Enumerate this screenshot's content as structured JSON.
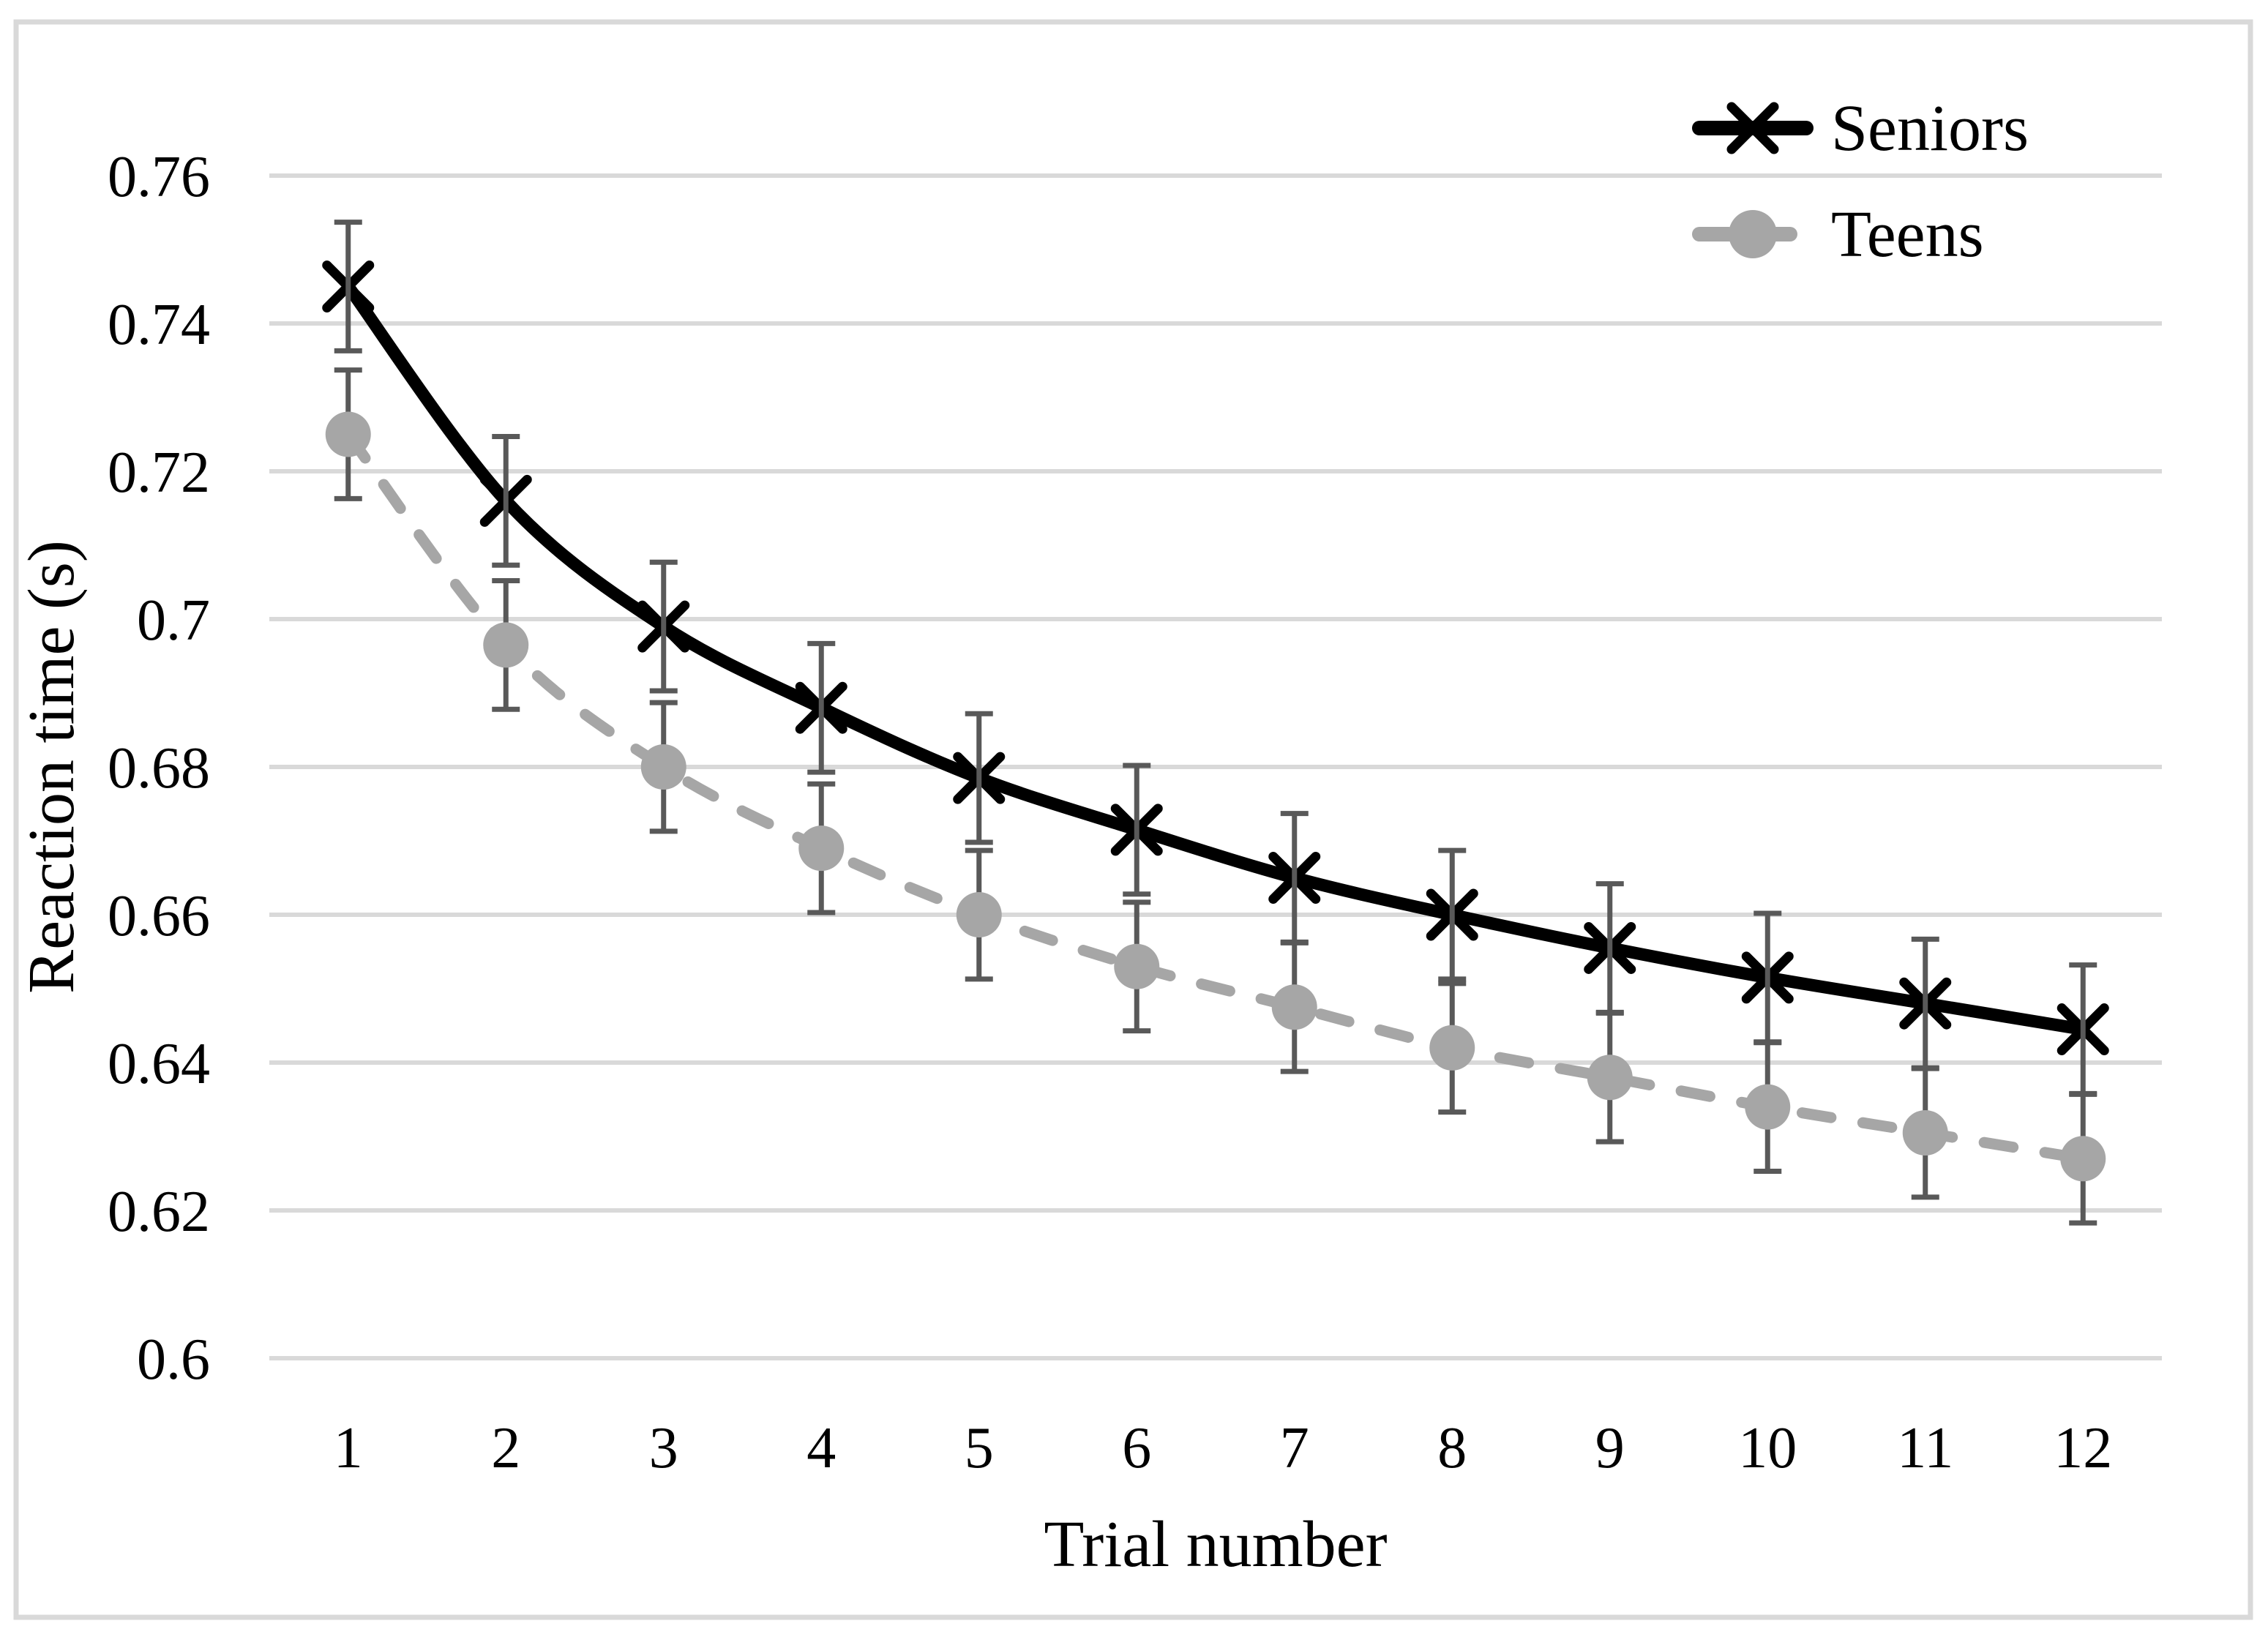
{
  "chart_data": {
    "type": "line",
    "title": "",
    "xlabel": "Trial number",
    "ylabel": "Reaction time (s)",
    "x": [
      1,
      2,
      3,
      4,
      5,
      6,
      7,
      8,
      9,
      10,
      11,
      12
    ],
    "xtick_labels": [
      "1",
      "2",
      "3",
      "4",
      "5",
      "6",
      "7",
      "8",
      "9",
      "10",
      "11",
      "12"
    ],
    "series": [
      {
        "name": "Seniors",
        "color": "#000000",
        "marker": "x",
        "line_style": "solid",
        "values": [
          0.745,
          0.716,
          0.699,
          0.688,
          0.6785,
          0.6715,
          0.665,
          0.66,
          0.6555,
          0.6515,
          0.648,
          0.6445
        ],
        "error": 0.0087
      },
      {
        "name": "Teens",
        "color": "#a6a6a6",
        "marker": "circle",
        "line_style": "dashed",
        "values": [
          0.725,
          0.6965,
          0.68,
          0.669,
          0.66,
          0.653,
          0.6475,
          0.642,
          0.638,
          0.634,
          0.6305,
          0.627
        ],
        "error": 0.0087
      }
    ],
    "ylim": [
      0.6,
      0.76
    ],
    "ytick_step": 0.02,
    "ytick_labels": [
      "0.76",
      "0.74",
      "0.72",
      "0.7",
      "0.68",
      "0.66",
      "0.64",
      "0.62",
      "0.6"
    ],
    "grid": "horizontal",
    "legend_position": "top-right",
    "colors": {
      "error_bar": "#595959",
      "gridline": "#d9d9d9",
      "figure_border": "#d9d9d9",
      "text": "#000000"
    }
  }
}
